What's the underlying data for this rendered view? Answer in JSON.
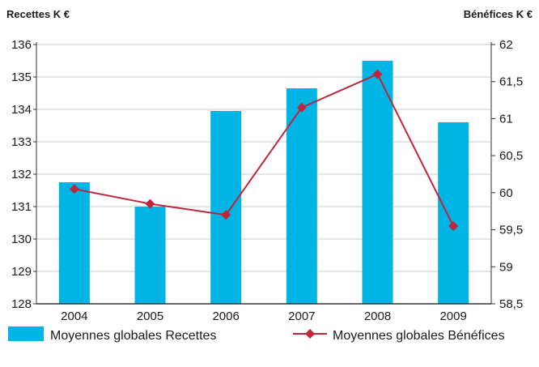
{
  "chart_data": {
    "type": "bar+line",
    "categories": [
      "2004",
      "2005",
      "2006",
      "2007",
      "2008",
      "2009"
    ],
    "series": [
      {
        "name": "Moyennes globales Recettes",
        "type": "bar",
        "axis": "left",
        "color": "#00b4e6",
        "values": [
          131.75,
          131.0,
          133.95,
          134.65,
          135.5,
          133.6
        ]
      },
      {
        "name": "Moyennes globales Bénéfices",
        "type": "line",
        "axis": "right",
        "color": "#c0263a",
        "values": [
          60.05,
          59.85,
          59.7,
          61.15,
          61.6,
          59.55
        ]
      }
    ],
    "y_left": {
      "label": "Recettes K €",
      "range": [
        128,
        136
      ],
      "ticks": [
        "128",
        "129",
        "130",
        "131",
        "132",
        "133",
        "134",
        "135",
        "136"
      ]
    },
    "y_right": {
      "label": "Bénéfices K €",
      "range": [
        58.5,
        62
      ],
      "ticks": [
        "58,5",
        "59",
        "59,5",
        "60",
        "60,5",
        "61",
        "61,5",
        "62"
      ]
    },
    "grid": true,
    "legend": "bottom"
  }
}
